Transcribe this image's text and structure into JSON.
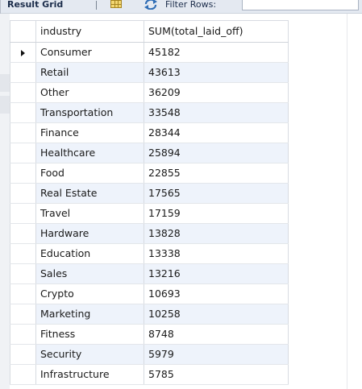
{
  "toolbar": {
    "result_grid_label": "Result Grid",
    "filter_rows_label": "Filter Rows:",
    "filter_value": ""
  },
  "grid": {
    "columns": [
      "industry",
      "SUM(total_laid_off)"
    ],
    "rows": [
      {
        "industry": "Consumer",
        "sum": "45182"
      },
      {
        "industry": "Retail",
        "sum": "43613"
      },
      {
        "industry": "Other",
        "sum": "36209"
      },
      {
        "industry": "Transportation",
        "sum": "33548"
      },
      {
        "industry": "Finance",
        "sum": "28344"
      },
      {
        "industry": "Healthcare",
        "sum": "25894"
      },
      {
        "industry": "Food",
        "sum": "22855"
      },
      {
        "industry": "Real Estate",
        "sum": "17565"
      },
      {
        "industry": "Travel",
        "sum": "17159"
      },
      {
        "industry": "Hardware",
        "sum": "13828"
      },
      {
        "industry": "Education",
        "sum": "13338"
      },
      {
        "industry": "Sales",
        "sum": "13216"
      },
      {
        "industry": "Crypto",
        "sum": "10693"
      },
      {
        "industry": "Marketing",
        "sum": "10258"
      },
      {
        "industry": "Fitness",
        "sum": "8748"
      },
      {
        "industry": "Security",
        "sum": "5979"
      },
      {
        "industry": "Infrastructure",
        "sum": "5785"
      }
    ],
    "current_row_icon": "row-cursor-arrow-icon"
  },
  "colors": {
    "toolbar_bg": "#e4e9f1",
    "alt_row_bg": "#eef3fb",
    "grid_line": "#d7dbe1"
  }
}
